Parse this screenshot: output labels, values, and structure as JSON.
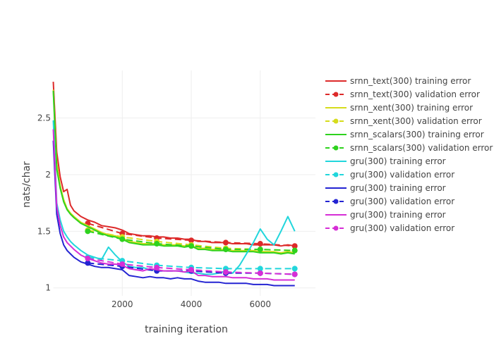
{
  "chart_data": {
    "type": "line",
    "title": "",
    "xlabel": "training iteration",
    "ylabel": "nats/char",
    "xlim": [
      0,
      7600
    ],
    "ylim": [
      0.93,
      2.92
    ],
    "xticks": [
      2000,
      4000,
      6000
    ],
    "xtick_labels": [
      "2000",
      "4000",
      "6000"
    ],
    "yticks": [
      1,
      1.5,
      2,
      2.5
    ],
    "ytick_labels": [
      "1",
      "1.5",
      "2",
      "2.5"
    ],
    "grid": true,
    "legend_position": "right",
    "train_x": [
      0,
      100,
      200,
      300,
      400,
      500,
      600,
      800,
      1000,
      1200,
      1400,
      1600,
      1800,
      2000,
      2200,
      2400,
      2600,
      2800,
      3000,
      3200,
      3400,
      3600,
      3800,
      4000,
      4200,
      4400,
      4600,
      4800,
      5000,
      5200,
      5400,
      5600,
      5800,
      6000,
      6200,
      6400,
      6600,
      6800,
      7000
    ],
    "val_x": [
      1000,
      2000,
      3000,
      4000,
      5000,
      6000,
      7000
    ],
    "series": [
      {
        "name": "srnn_text(300) training error",
        "kind": "train",
        "color": "#dd2a2a",
        "values": [
          2.82,
          2.2,
          1.98,
          1.85,
          1.87,
          1.73,
          1.68,
          1.63,
          1.6,
          1.58,
          1.55,
          1.54,
          1.53,
          1.51,
          1.48,
          1.47,
          1.46,
          1.46,
          1.45,
          1.45,
          1.44,
          1.44,
          1.43,
          1.43,
          1.41,
          1.41,
          1.4,
          1.4,
          1.4,
          1.39,
          1.39,
          1.39,
          1.38,
          1.38,
          1.38,
          1.38,
          1.37,
          1.38,
          1.37
        ]
      },
      {
        "name": "srnn_text(300) validation error",
        "kind": "val",
        "color": "#dd2a2a",
        "values": [
          1.57,
          1.48,
          1.44,
          1.42,
          1.4,
          1.39,
          1.37
        ]
      },
      {
        "name": "srnn_xent(300) training error",
        "kind": "train",
        "color": "#d6dc1c",
        "values": [
          2.75,
          2.1,
          1.9,
          1.78,
          1.7,
          1.66,
          1.63,
          1.58,
          1.55,
          1.52,
          1.49,
          1.47,
          1.46,
          1.44,
          1.41,
          1.4,
          1.39,
          1.39,
          1.39,
          1.38,
          1.38,
          1.38,
          1.37,
          1.37,
          1.35,
          1.35,
          1.34,
          1.34,
          1.34,
          1.33,
          1.33,
          1.33,
          1.33,
          1.32,
          1.32,
          1.32,
          1.31,
          1.32,
          1.31
        ]
      },
      {
        "name": "srnn_xent(300) validation error",
        "kind": "val",
        "color": "#d6dc1c",
        "values": [
          1.51,
          1.45,
          1.41,
          1.38,
          1.35,
          1.34,
          1.33
        ]
      },
      {
        "name": "srnn_scalars(300) training error",
        "kind": "train",
        "color": "#2ed21e",
        "values": [
          2.74,
          2.05,
          1.88,
          1.76,
          1.69,
          1.65,
          1.62,
          1.57,
          1.54,
          1.51,
          1.48,
          1.46,
          1.45,
          1.43,
          1.4,
          1.39,
          1.38,
          1.38,
          1.38,
          1.37,
          1.37,
          1.37,
          1.36,
          1.37,
          1.34,
          1.34,
          1.33,
          1.33,
          1.33,
          1.32,
          1.32,
          1.32,
          1.32,
          1.31,
          1.31,
          1.31,
          1.3,
          1.31,
          1.3
        ]
      },
      {
        "name": "srnn_scalars(300) validation error",
        "kind": "val",
        "color": "#2ed21e",
        "values": [
          1.5,
          1.43,
          1.39,
          1.37,
          1.34,
          1.34,
          1.33
        ]
      },
      {
        "name": "gru(300) training error",
        "kind": "train",
        "color": "#22d6dc",
        "values": [
          2.48,
          1.75,
          1.6,
          1.5,
          1.45,
          1.41,
          1.38,
          1.33,
          1.29,
          1.27,
          1.25,
          1.36,
          1.29,
          1.23,
          1.19,
          1.18,
          1.18,
          1.16,
          1.16,
          1.15,
          1.15,
          1.15,
          1.14,
          1.13,
          1.13,
          1.12,
          1.12,
          1.13,
          1.15,
          1.13,
          1.2,
          1.3,
          1.4,
          1.52,
          1.43,
          1.38,
          1.5,
          1.63,
          1.5
        ]
      },
      {
        "name": "gru(300) validation error",
        "kind": "val",
        "color": "#22d6dc",
        "values": [
          1.27,
          1.24,
          1.2,
          1.18,
          1.17,
          1.17,
          1.17
        ]
      },
      {
        "name": "gru(300) training error",
        "kind": "train",
        "color": "#2424d2",
        "values": [
          2.3,
          1.65,
          1.48,
          1.38,
          1.33,
          1.3,
          1.27,
          1.23,
          1.21,
          1.19,
          1.18,
          1.18,
          1.17,
          1.16,
          1.11,
          1.1,
          1.09,
          1.1,
          1.09,
          1.09,
          1.08,
          1.09,
          1.08,
          1.08,
          1.06,
          1.05,
          1.05,
          1.05,
          1.04,
          1.04,
          1.04,
          1.04,
          1.03,
          1.03,
          1.03,
          1.02,
          1.02,
          1.02,
          1.02
        ]
      },
      {
        "name": "gru(300) validation error",
        "kind": "val",
        "color": "#2424d2",
        "values": [
          1.22,
          1.19,
          1.15,
          1.15,
          1.13,
          1.13,
          1.12
        ]
      },
      {
        "name": "gru(300) training error",
        "kind": "train",
        "color": "#d62ed6",
        "values": [
          2.4,
          1.72,
          1.55,
          1.45,
          1.4,
          1.37,
          1.34,
          1.29,
          1.26,
          1.24,
          1.22,
          1.21,
          1.21,
          1.2,
          1.17,
          1.16,
          1.15,
          1.17,
          1.16,
          1.15,
          1.15,
          1.15,
          1.14,
          1.15,
          1.11,
          1.11,
          1.1,
          1.1,
          1.1,
          1.09,
          1.09,
          1.09,
          1.08,
          1.08,
          1.08,
          1.07,
          1.07,
          1.07,
          1.07
        ]
      },
      {
        "name": "gru(300) validation error",
        "kind": "val",
        "color": "#d62ed6",
        "values": [
          1.26,
          1.21,
          1.18,
          1.16,
          1.14,
          1.13,
          1.12
        ]
      }
    ]
  }
}
